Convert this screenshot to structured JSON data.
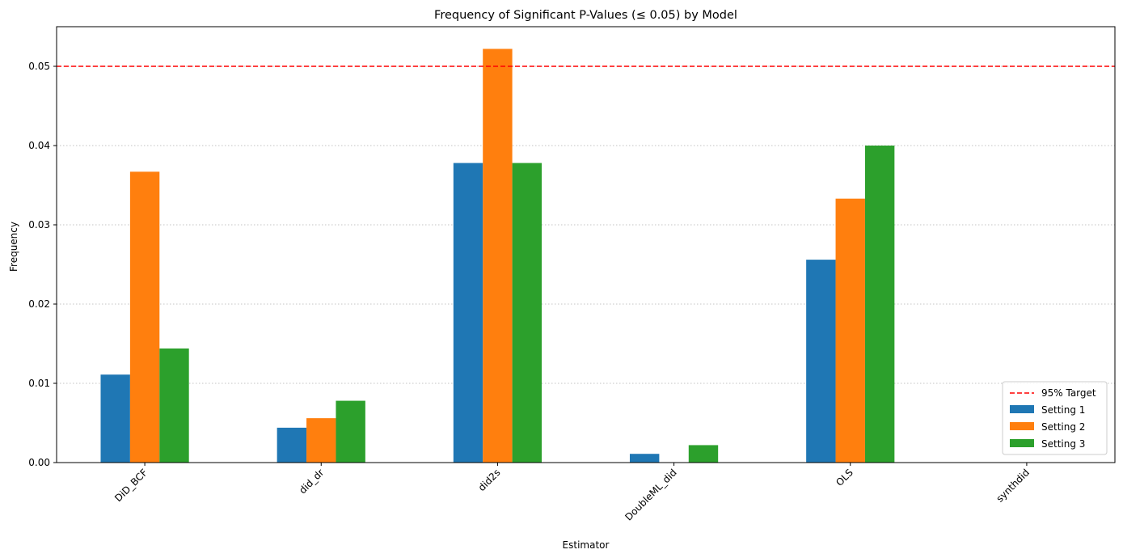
{
  "chart_data": {
    "type": "bar",
    "title": "Frequency of Significant P-Values (≤ 0.05) by Model",
    "xlabel": "Estimator",
    "ylabel": "Frequency",
    "ylim": [
      0,
      0.055
    ],
    "yticks": [
      "0.00",
      "0.01",
      "0.02",
      "0.03",
      "0.04",
      "0.05"
    ],
    "ytick_values": [
      0,
      0.01,
      0.02,
      0.03,
      0.04,
      0.05
    ],
    "grid": "y-dotted",
    "categories": [
      "DiD_BCF",
      "did_dr",
      "did2s",
      "DoubleML_did",
      "OLS",
      "synthdid"
    ],
    "series": [
      {
        "name": "Setting 1",
        "color": "#1f77b4",
        "values": [
          0.0111,
          0.0044,
          0.0378,
          0.0011,
          0.0256,
          0
        ]
      },
      {
        "name": "Setting 2",
        "color": "#ff7f0e",
        "values": [
          0.0367,
          0.0056,
          0.0522,
          0,
          0.0333,
          0
        ]
      },
      {
        "name": "Setting 3",
        "color": "#2ca02c",
        "values": [
          0.0144,
          0.0078,
          0.0378,
          0.0022,
          0.04,
          0
        ]
      }
    ],
    "reference_line": {
      "label": "95% Target",
      "value": 0.05,
      "color": "#ff0000",
      "style": "dashed"
    },
    "legend": {
      "placement": "lower-right"
    }
  }
}
